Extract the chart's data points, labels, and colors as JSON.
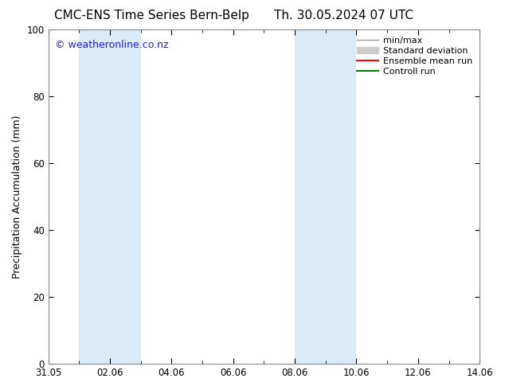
{
  "title_left": "CMC-ENS Time Series Bern-Belp",
  "title_right": "Th. 30.05.2024 07 UTC",
  "ylabel": "Precipitation Accumulation (mm)",
  "ylim": [
    0,
    100
  ],
  "yticks": [
    0,
    20,
    40,
    60,
    80,
    100
  ],
  "xtick_labels": [
    "31.05",
    "02.06",
    "04.06",
    "06.06",
    "08.06",
    "10.06",
    "12.06",
    "14.06"
  ],
  "xtick_positions": [
    0,
    2,
    4,
    6,
    8,
    10,
    12,
    14
  ],
  "watermark": "© weatheronline.co.nz",
  "watermark_color": "#1a1aff",
  "shaded_regions": [
    {
      "x_start": 1.0,
      "x_end": 3.0
    },
    {
      "x_start": 8.0,
      "x_end": 10.0
    }
  ],
  "shade_color": "#daeaf7",
  "legend_entries": [
    {
      "label": "min/max",
      "color": "#999999",
      "lw": 1.0,
      "kind": "line"
    },
    {
      "label": "Standard deviation",
      "color": "#cccccc",
      "lw": 8,
      "kind": "patch"
    },
    {
      "label": "Ensemble mean run",
      "color": "#ff0000",
      "lw": 1.5,
      "kind": "line"
    },
    {
      "label": "Controll run",
      "color": "#008000",
      "lw": 1.5,
      "kind": "line"
    }
  ],
  "bg_color": "#ffffff",
  "spine_color": "#888888",
  "title_fontsize": 11,
  "label_fontsize": 9,
  "tick_fontsize": 8.5,
  "legend_fontsize": 8,
  "watermark_fontsize": 9,
  "x_min": 0,
  "x_max": 14
}
